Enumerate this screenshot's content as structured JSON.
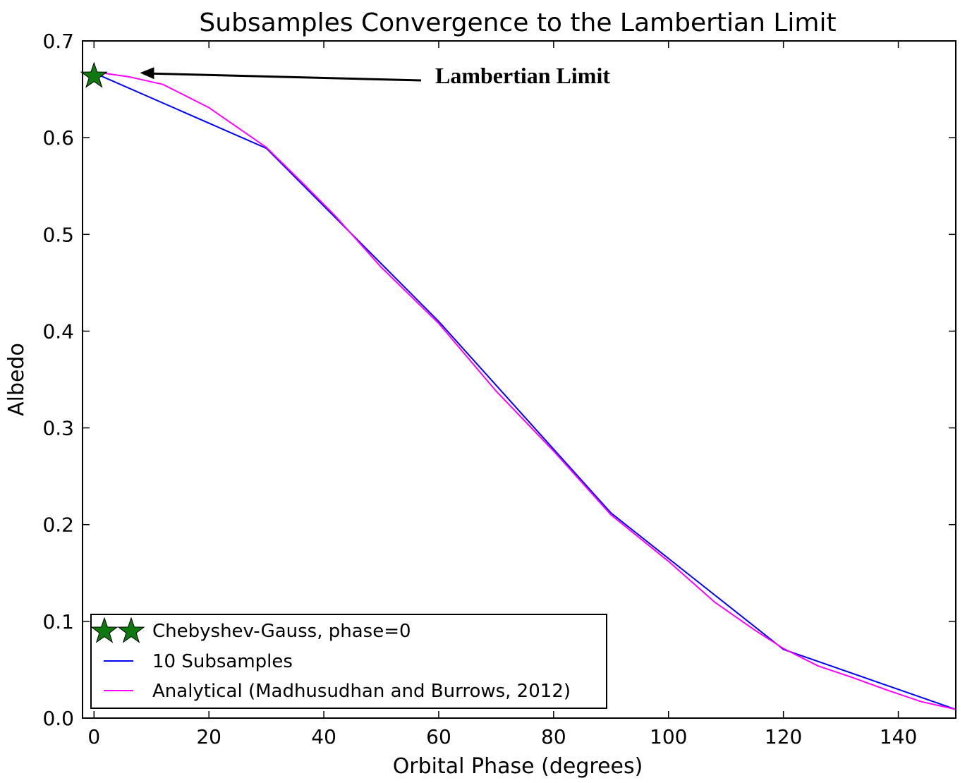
{
  "chart_data": {
    "type": "line",
    "title": "Subsamples Convergence to the Lambertian Limit",
    "xlabel": "Orbital Phase (degrees)",
    "ylabel": "Albedo",
    "xlim": [
      -2,
      150
    ],
    "ylim": [
      0.0,
      0.7
    ],
    "x_ticks": [
      0,
      20,
      40,
      60,
      80,
      100,
      120,
      140
    ],
    "y_ticks": [
      0.0,
      0.1,
      0.2,
      0.3,
      0.4,
      0.5,
      0.6,
      0.7
    ],
    "x_tick_labels": [
      "0",
      "20",
      "40",
      "60",
      "80",
      "100",
      "120",
      "140"
    ],
    "y_tick_labels": [
      "0.0",
      "0.1",
      "0.2",
      "0.3",
      "0.4",
      "0.5",
      "0.6",
      "0.7"
    ],
    "series": [
      {
        "name": "Chebyshev-Gauss, phase=0",
        "kind": "marker",
        "marker": "star",
        "color": "#0e7a0e",
        "x": [
          0
        ],
        "y": [
          0.6635
        ]
      },
      {
        "name": "10 Subsamples",
        "kind": "line",
        "color": "#0000ff",
        "x": [
          0,
          30,
          60,
          90,
          120,
          150
        ],
        "y": [
          0.667,
          0.589,
          0.41,
          0.212,
          0.071,
          0.009
        ]
      },
      {
        "name": "Analytical (Madhusudhan and Burrows, 2012)",
        "kind": "line",
        "color": "#ff00ff",
        "x": [
          0,
          6,
          12,
          20,
          30,
          36,
          42,
          50,
          60,
          70,
          80,
          90,
          100,
          108,
          115,
          120,
          126,
          132,
          138,
          144,
          150
        ],
        "y": [
          0.668,
          0.663,
          0.655,
          0.631,
          0.59,
          0.555,
          0.519,
          0.466,
          0.408,
          0.338,
          0.276,
          0.21,
          0.162,
          0.12,
          0.091,
          0.072,
          0.054,
          0.042,
          0.029,
          0.017,
          0.009
        ]
      }
    ],
    "annotation": {
      "text": "Lambertian Limit",
      "arrow_target": [
        8,
        0.667
      ]
    },
    "legend_location": "lower-left"
  }
}
